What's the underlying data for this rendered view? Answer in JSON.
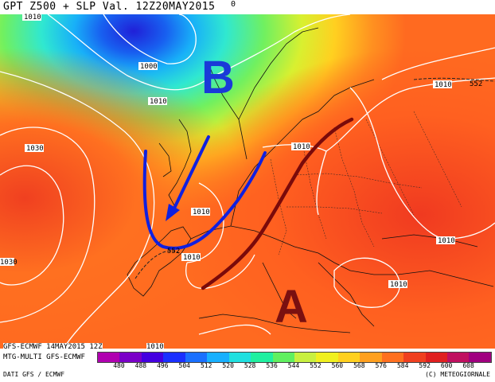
{
  "title": "GPT Z500 + SLP Val. 12Z20MAY2015",
  "corner_value": "0",
  "labels": {
    "low_letter": "B",
    "high_letter": "A"
  },
  "isobar_labels": [
    "1010",
    "1000",
    "1010",
    "1030",
    "1010",
    "1010",
    "1010",
    "1010",
    "1010",
    "1010",
    "1010",
    "1030"
  ],
  "contour_labels": [
    "552",
    "552"
  ],
  "footer": {
    "run": "GFS-ECMWF 14MAY2015 12Z",
    "model": "MTG-MULTI GFS-ECMWF",
    "data": "DATI GFS / ECMWF",
    "credit": "(C) METEOGIORNALE",
    "isobar_ref": "1010"
  },
  "legend": {
    "values": [
      "480",
      "488",
      "496",
      "504",
      "512",
      "520",
      "528",
      "536",
      "544",
      "552",
      "560",
      "568",
      "576",
      "584",
      "592",
      "600",
      "608"
    ],
    "colors": [
      "#b000b0",
      "#7a00c8",
      "#4400e0",
      "#1a30ff",
      "#1a70ff",
      "#18b0ff",
      "#20e0e0",
      "#20f0a0",
      "#60f060",
      "#c8f040",
      "#f0f020",
      "#ffd020",
      "#ffa020",
      "#ff7020",
      "#f04020",
      "#e02020",
      "#c01060",
      "#a00080"
    ]
  },
  "colors": {
    "low_arrow": "#1020e0",
    "trough_line": "#2040ff",
    "ridge_line": "#7a0a0a",
    "high_letter": "#7a1010",
    "low_letter": "#1a3ad8"
  }
}
